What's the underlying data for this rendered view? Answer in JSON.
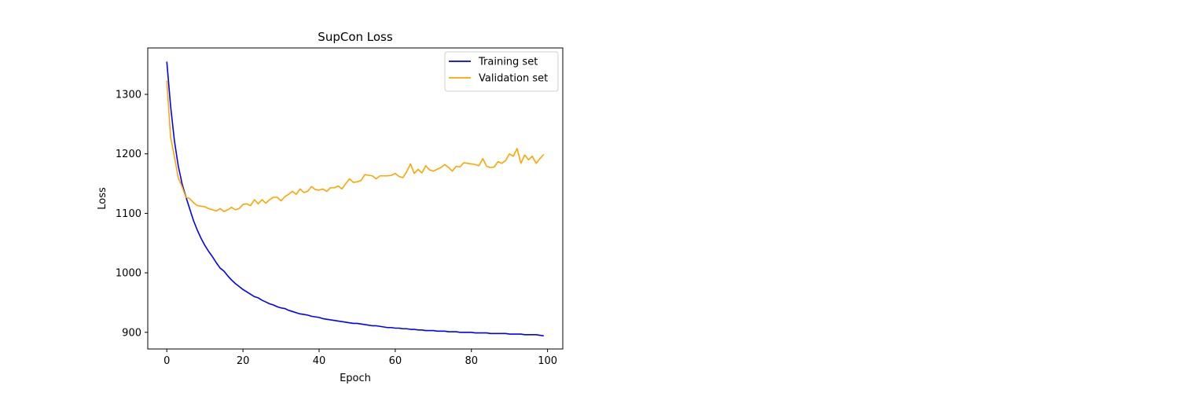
{
  "chart_data": {
    "type": "line",
    "title": "SupCon Loss",
    "xlabel": "Epoch",
    "ylabel": "Loss",
    "xlim": [
      -5,
      104
    ],
    "ylim": [
      872,
      1378
    ],
    "xticks": [
      0,
      20,
      40,
      60,
      80,
      100
    ],
    "yticks": [
      900,
      1000,
      1100,
      1200,
      1300
    ],
    "grid": false,
    "legend_position": "top-right",
    "series": [
      {
        "name": "Training set",
        "color": "#0000ff",
        "x": [
          0,
          1,
          2,
          3,
          4,
          5,
          6,
          7,
          8,
          9,
          10,
          11,
          12,
          13,
          14,
          15,
          16,
          17,
          18,
          19,
          20,
          21,
          22,
          23,
          24,
          25,
          26,
          27,
          28,
          29,
          30,
          31,
          32,
          33,
          34,
          35,
          36,
          37,
          38,
          39,
          40,
          41,
          42,
          43,
          44,
          45,
          46,
          47,
          48,
          49,
          50,
          51,
          52,
          53,
          54,
          55,
          56,
          57,
          58,
          59,
          60,
          61,
          62,
          63,
          64,
          65,
          66,
          67,
          68,
          69,
          70,
          71,
          72,
          73,
          74,
          75,
          76,
          77,
          78,
          79,
          80,
          81,
          82,
          83,
          84,
          85,
          86,
          87,
          88,
          89,
          90,
          91,
          92,
          93,
          94,
          95,
          96,
          97,
          98,
          99
        ],
        "values": [
          1355,
          1280,
          1222,
          1180,
          1150,
          1128,
          1108,
          1088,
          1072,
          1058,
          1046,
          1036,
          1027,
          1017,
          1008,
          1003,
          995,
          988,
          982,
          977,
          972,
          968,
          964,
          960,
          958,
          954,
          951,
          948,
          946,
          943,
          941,
          940,
          937,
          935,
          933,
          931,
          930,
          929,
          927,
          926,
          925,
          923,
          922,
          921,
          920,
          919,
          918,
          917,
          916,
          915,
          915,
          914,
          913,
          912,
          911,
          911,
          910,
          909,
          908,
          908,
          907,
          907,
          906,
          906,
          905,
          905,
          904,
          904,
          903,
          903,
          903,
          902,
          902,
          902,
          901,
          901,
          901,
          900,
          900,
          900,
          900,
          899,
          899,
          899,
          899,
          898,
          898,
          898,
          898,
          898,
          897,
          897,
          897,
          897,
          896,
          896,
          896,
          896,
          895,
          894
        ]
      },
      {
        "name": "Validation set",
        "color": "#ffa500",
        "x": [
          0,
          1,
          2,
          3,
          4,
          5,
          6,
          7,
          8,
          9,
          10,
          11,
          12,
          13,
          14,
          15,
          16,
          17,
          18,
          19,
          20,
          21,
          22,
          23,
          24,
          25,
          26,
          27,
          28,
          29,
          30,
          31,
          32,
          33,
          34,
          35,
          36,
          37,
          38,
          39,
          40,
          41,
          42,
          43,
          44,
          45,
          46,
          47,
          48,
          49,
          50,
          51,
          52,
          53,
          54,
          55,
          56,
          57,
          58,
          59,
          60,
          61,
          62,
          63,
          64,
          65,
          66,
          67,
          68,
          69,
          70,
          71,
          72,
          73,
          74,
          75,
          76,
          77,
          78,
          79,
          80,
          81,
          82,
          83,
          84,
          85,
          86,
          87,
          88,
          89,
          90,
          91,
          92,
          93,
          94,
          95,
          96,
          97,
          98,
          99
        ],
        "values": [
          1323,
          1228,
          1195,
          1160,
          1145,
          1127,
          1125,
          1118,
          1113,
          1112,
          1111,
          1108,
          1106,
          1104,
          1108,
          1103,
          1106,
          1110,
          1106,
          1108,
          1115,
          1116,
          1113,
          1123,
          1116,
          1123,
          1117,
          1123,
          1127,
          1127,
          1121,
          1128,
          1132,
          1137,
          1132,
          1141,
          1135,
          1137,
          1145,
          1140,
          1139,
          1141,
          1137,
          1143,
          1143,
          1146,
          1141,
          1150,
          1158,
          1152,
          1153,
          1155,
          1165,
          1164,
          1163,
          1158,
          1163,
          1163,
          1163,
          1164,
          1167,
          1162,
          1160,
          1170,
          1183,
          1167,
          1174,
          1168,
          1180,
          1173,
          1171,
          1174,
          1177,
          1182,
          1177,
          1171,
          1179,
          1178,
          1185,
          1184,
          1183,
          1182,
          1180,
          1192,
          1179,
          1177,
          1178,
          1187,
          1184,
          1189,
          1200,
          1196,
          1209,
          1184,
          1198,
          1190,
          1196,
          1184,
          1192,
          1199
        ]
      }
    ]
  }
}
